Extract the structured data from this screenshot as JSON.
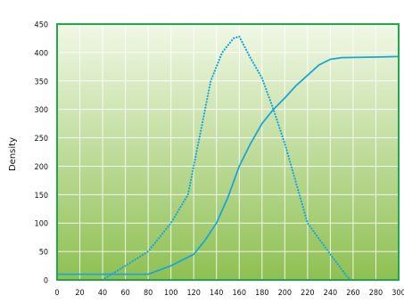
{
  "chart_data": {
    "type": "line",
    "title": "",
    "xlabel": "",
    "ylabel": "Density",
    "xlim": [
      0,
      300
    ],
    "ylim": [
      0,
      450
    ],
    "x_ticks": [
      0,
      20,
      40,
      60,
      80,
      100,
      120,
      140,
      160,
      180,
      200,
      220,
      240,
      260,
      280,
      300
    ],
    "y_ticks": [
      0,
      50,
      100,
      150,
      200,
      250,
      300,
      350,
      400,
      450
    ],
    "grid": true,
    "legend": "none",
    "series": [
      {
        "style": "solid",
        "points": [
          [
            0,
            10
          ],
          [
            40,
            10
          ],
          [
            80,
            10
          ],
          [
            100,
            25
          ],
          [
            120,
            45
          ],
          [
            130,
            70
          ],
          [
            140,
            100
          ],
          [
            150,
            145
          ],
          [
            160,
            200
          ],
          [
            170,
            240
          ],
          [
            180,
            275
          ],
          [
            190,
            300
          ],
          [
            200,
            320
          ],
          [
            210,
            342
          ],
          [
            220,
            360
          ],
          [
            230,
            378
          ],
          [
            240,
            388
          ],
          [
            250,
            391
          ],
          [
            280,
            392
          ],
          [
            300,
            393
          ]
        ]
      },
      {
        "style": "dotted",
        "points": [
          [
            40,
            0
          ],
          [
            60,
            25
          ],
          [
            80,
            50
          ],
          [
            100,
            100
          ],
          [
            115,
            150
          ],
          [
            125,
            250
          ],
          [
            135,
            350
          ],
          [
            145,
            400
          ],
          [
            155,
            425
          ],
          [
            160,
            428
          ],
          [
            170,
            390
          ],
          [
            180,
            355
          ],
          [
            190,
            300
          ],
          [
            200,
            240
          ],
          [
            210,
            170
          ],
          [
            220,
            100
          ],
          [
            240,
            45
          ],
          [
            255,
            5
          ],
          [
            258,
            0
          ]
        ]
      }
    ],
    "colors": {
      "line": "#1aa7d8",
      "frame": "#21a84c",
      "grid": "#ffffff",
      "gradient_top": "#f1f8e6",
      "gradient_bottom": "#8ec052"
    }
  }
}
